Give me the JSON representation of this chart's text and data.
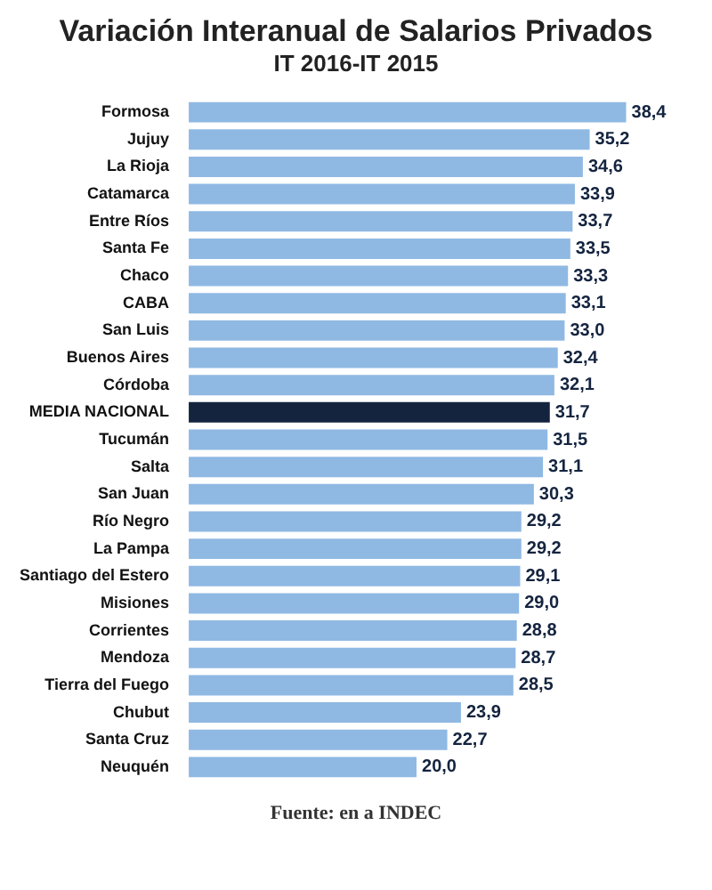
{
  "chart_data": {
    "type": "bar",
    "orientation": "horizontal",
    "title": "Variación Interanual de Salarios Privados",
    "subtitle": "IT 2016-IT 2015",
    "categories": [
      "Formosa",
      "Jujuy",
      "La Rioja",
      "Catamarca",
      "Entre Ríos",
      "Santa Fe",
      "Chaco",
      "CABA",
      "San Luis",
      "Buenos Aires",
      "Córdoba",
      "MEDIA NACIONAL",
      "Tucumán",
      "Salta",
      "San Juan",
      "Río Negro",
      "La Pampa",
      "Santiago del Estero",
      "Misiones",
      "Corrientes",
      "Mendoza",
      "Tierra del Fuego",
      "Chubut",
      "Santa Cruz",
      "Neuquén"
    ],
    "values": [
      38.4,
      35.2,
      34.6,
      33.9,
      33.7,
      33.5,
      33.3,
      33.1,
      33.0,
      32.4,
      32.1,
      31.7,
      31.5,
      31.1,
      30.3,
      29.2,
      29.2,
      29.1,
      29.0,
      28.8,
      28.7,
      28.5,
      23.9,
      22.7,
      20.0
    ],
    "value_labels": [
      "38,4",
      "35,2",
      "34,6",
      "33,9",
      "33,7",
      "33,5",
      "33,3",
      "33,1",
      "33,0",
      "32,4",
      "32,1",
      "31,7",
      "31,5",
      "31,1",
      "30,3",
      "29,2",
      "29,2",
      "29,1",
      "29,0",
      "28,8",
      "28,7",
      "28,5",
      "23,9",
      "22,7",
      "20,0"
    ],
    "colors": [
      "#8fb9e3",
      "#8fb9e3",
      "#8fb9e3",
      "#8fb9e3",
      "#8fb9e3",
      "#8fb9e3",
      "#8fb9e3",
      "#8fb9e3",
      "#8fb9e3",
      "#8fb9e3",
      "#8fb9e3",
      "#14243f",
      "#8fb9e3",
      "#8fb9e3",
      "#8fb9e3",
      "#8fb9e3",
      "#8fb9e3",
      "#8fb9e3",
      "#8fb9e3",
      "#8fb9e3",
      "#8fb9e3",
      "#8fb9e3",
      "#8fb9e3",
      "#8fb9e3",
      "#8fb9e3"
    ],
    "grid": false,
    "legend": false,
    "annotations": [
      "Fuente: en a INDEC"
    ]
  }
}
